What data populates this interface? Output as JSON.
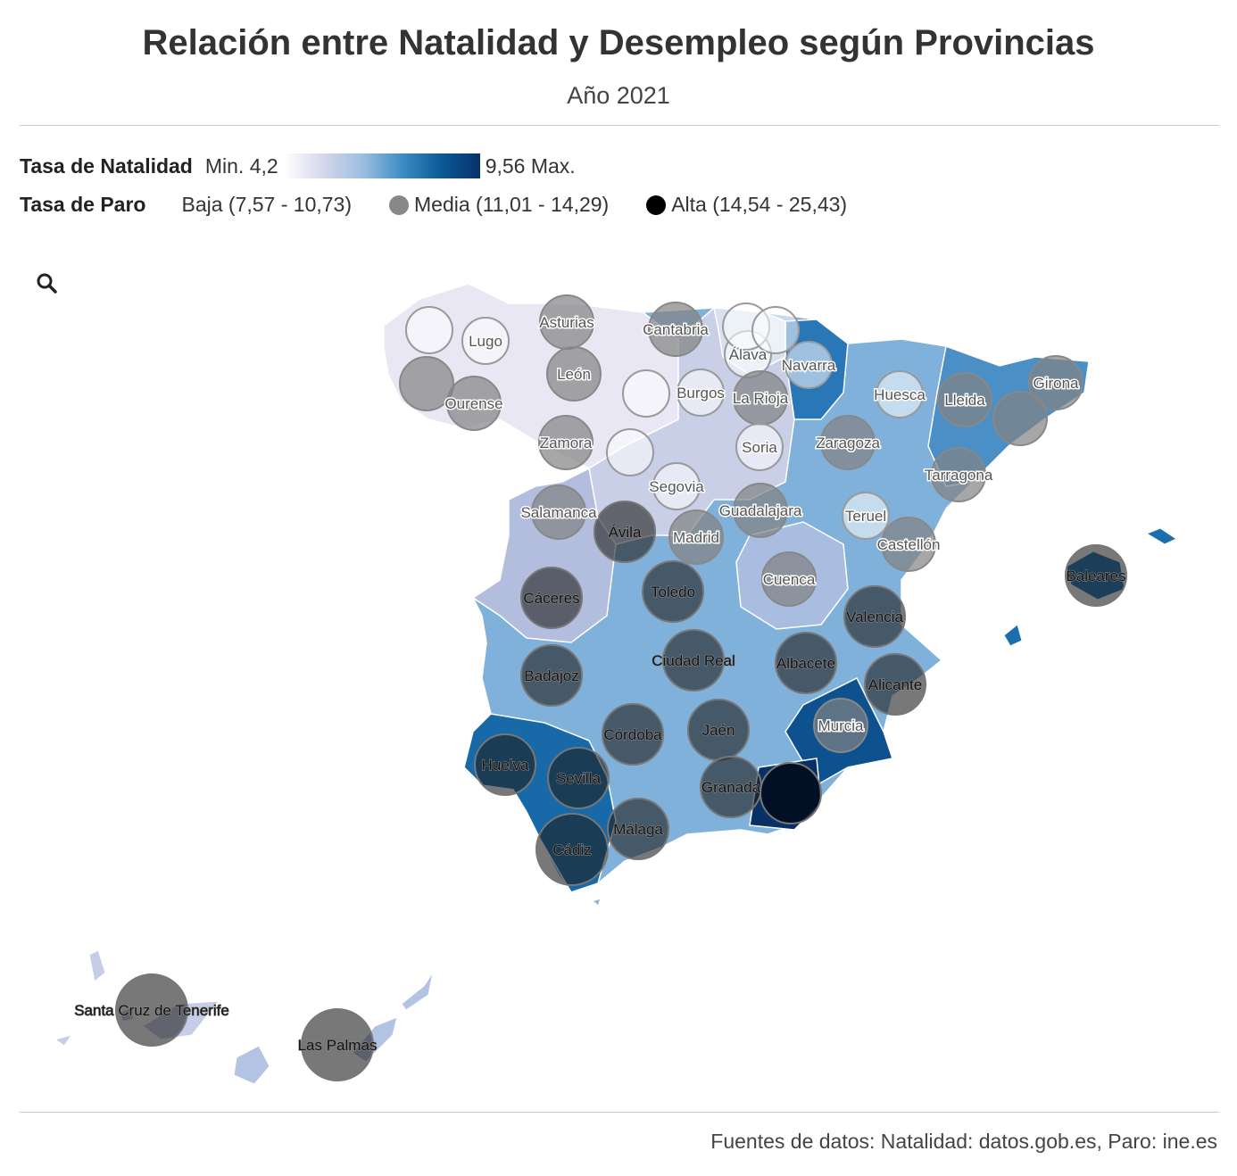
{
  "header": {
    "title": "Relación entre Natalidad y Desempleo según Provincias",
    "subtitle": "Año 2021"
  },
  "legend": {
    "natalidad_label": "Tasa de Natalidad",
    "min_label": "Min. 4,2",
    "max_label": "9,56 Max.",
    "gradient_colors": [
      "#ffffff",
      "#d5d7ec",
      "#9cbfe0",
      "#3f8dc6",
      "#0b5a96",
      "#08306b"
    ],
    "paro_label": "Tasa de Paro",
    "paro_levels": [
      {
        "label": "Baja (7,57 - 10,73)",
        "color": "#ffffff"
      },
      {
        "label": "Media (11,01 - 14,29)",
        "color": "#888888"
      },
      {
        "label": "Alta (14,54 - 25,43)",
        "color": "#000000"
      }
    ]
  },
  "map": {
    "zoom_icon": "search-icon",
    "provinces": [
      {
        "name": "",
        "paro": "media",
        "shade": 0
      },
      {
        "name": "",
        "paro": "baja",
        "shade": 0
      },
      {
        "name": "Lugo",
        "paro": "baja",
        "shade": 0
      },
      {
        "name": "Ourense",
        "paro": "media",
        "shade": 0
      },
      {
        "name": "Asturias",
        "paro": "media",
        "shade": 0
      },
      {
        "name": "León",
        "paro": "media",
        "shade": 0
      },
      {
        "name": "Cantabria",
        "paro": "media",
        "shade": 0
      },
      {
        "name": "Zamora",
        "paro": "media",
        "shade": 0
      },
      {
        "name": "",
        "paro": "baja",
        "shade": 0
      },
      {
        "name": "Burgos",
        "paro": "baja",
        "shade": 0
      },
      {
        "name": "",
        "paro": "baja",
        "shade": 0
      },
      {
        "name": "Álava",
        "paro": "baja",
        "shade": 1
      },
      {
        "name": "",
        "paro": "baja",
        "shade": 1
      },
      {
        "name": "",
        "paro": "baja",
        "shade": 1
      },
      {
        "name": "Navarra",
        "paro": "baja",
        "shade": 2
      },
      {
        "name": "La Rioja",
        "paro": "media",
        "shade": 2
      },
      {
        "name": "Soria",
        "paro": "baja",
        "shade": 1
      },
      {
        "name": "Huesca",
        "paro": "baja",
        "shade": 2
      },
      {
        "name": "Lleida",
        "paro": "media",
        "shade": 2
      },
      {
        "name": "Girona",
        "paro": "media",
        "shade": 3
      },
      {
        "name": "",
        "paro": "media",
        "shade": 3
      },
      {
        "name": "Zaragoza",
        "paro": "media",
        "shade": 2
      },
      {
        "name": "Tarragona",
        "paro": "media",
        "shade": 3
      },
      {
        "name": "Salamanca",
        "paro": "media",
        "shade": 0
      },
      {
        "name": "Segovia",
        "paro": "baja",
        "shade": 1
      },
      {
        "name": "Ávila",
        "paro": "alta",
        "shade": 0
      },
      {
        "name": "Guadalajara",
        "paro": "media",
        "shade": 2
      },
      {
        "name": "Teruel",
        "paro": "baja",
        "shade": 2
      },
      {
        "name": "Madrid",
        "paro": "media",
        "shade": 3
      },
      {
        "name": "Castellón",
        "paro": "media",
        "shade": 2
      },
      {
        "name": "Cáceres",
        "paro": "alta",
        "shade": 1
      },
      {
        "name": "Toledo",
        "paro": "alta",
        "shade": 3
      },
      {
        "name": "Cuenca",
        "paro": "media",
        "shade": 1
      },
      {
        "name": "Valencia",
        "paro": "alta",
        "shade": 3
      },
      {
        "name": "Baleares",
        "paro": "alta",
        "shade": 4
      },
      {
        "name": "Badajoz",
        "paro": "alta",
        "shade": 3
      },
      {
        "name": "Ciudad Real",
        "paro": "alta",
        "shade": 2
      },
      {
        "name": "Albacete",
        "paro": "alta",
        "shade": 2
      },
      {
        "name": "Alicante",
        "paro": "alta",
        "shade": 3
      },
      {
        "name": "Murcia",
        "paro": "media",
        "shade": 4
      },
      {
        "name": "Córdoba",
        "paro": "alta",
        "shade": 3
      },
      {
        "name": "Jaén",
        "paro": "alta",
        "shade": 3
      },
      {
        "name": "Huelva",
        "paro": "alta",
        "shade": 4
      },
      {
        "name": "Sevilla",
        "paro": "alta",
        "shade": 4
      },
      {
        "name": "Granada",
        "paro": "alta",
        "shade": 3
      },
      {
        "name": "",
        "paro": "alta",
        "shade": 5
      },
      {
        "name": "Cádiz",
        "paro": "alta",
        "shade": 4
      },
      {
        "name": "Málaga",
        "paro": "alta",
        "shade": 3
      },
      {
        "name": "Santa Cruz de Tenerife",
        "paro": "alta",
        "shade": 1
      },
      {
        "name": "Las Palmas",
        "paro": "alta",
        "shade": 1
      }
    ]
  },
  "footer": {
    "sources": "Fuentes de datos: Natalidad: datos.gob.es, Paro: ine.es"
  }
}
